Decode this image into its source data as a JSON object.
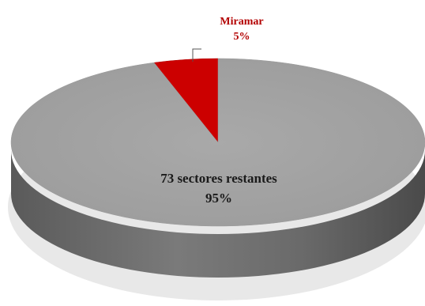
{
  "chart_data": {
    "type": "pie",
    "title": "",
    "slices": [
      {
        "name": "Miramar",
        "value": 5,
        "value_label": "5%",
        "color": "#cc0000",
        "label_color": "#b30000"
      },
      {
        "name": "73 sectores restantes",
        "value": 95,
        "value_label": "95%",
        "color": "#a6a6a6",
        "label_color": "#1a1a1a"
      }
    ],
    "style": "3d",
    "legend": "none",
    "labels_placement": "on-slice / callout"
  }
}
